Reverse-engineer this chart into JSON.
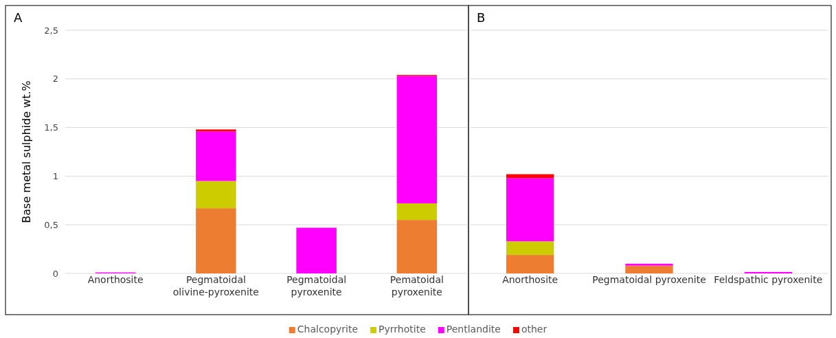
{
  "chart_data": [
    {
      "type": "bar",
      "stacked": true,
      "ylabel": "Base metal sulphide wt.%",
      "annotations": [
        "A"
      ],
      "categories": [
        "Anorthosite",
        "Pegmatoidal olivine-pyroxenite",
        "Pegmatoidal pyroxenite",
        "Pematoidal pyroxenite"
      ],
      "ylim": [
        0,
        2.5
      ],
      "yticks": [
        0,
        {
          "value": 0.5,
          "label": "0,5"
        },
        1,
        {
          "value": 1.5,
          "label": "1,5"
        },
        2,
        {
          "value": 2.5,
          "label": "2,5"
        }
      ],
      "grid": "y",
      "legend": "bottom",
      "series": [
        {
          "name": "Chalcopyrite",
          "color": "#ed7d31",
          "values": [
            0,
            0.67,
            0,
            0.55
          ]
        },
        {
          "name": "Pyrrhotite",
          "color": "#cccc00",
          "values": [
            0,
            0.28,
            0,
            0.17
          ]
        },
        {
          "name": "Pentlandite",
          "color": "#ff00ff",
          "values": [
            0.01,
            0.51,
            0.47,
            1.31
          ]
        },
        {
          "name": "other",
          "color": "#ff0000",
          "values": [
            0,
            0.02,
            0,
            0.01
          ]
        }
      ]
    },
    {
      "type": "bar",
      "stacked": true,
      "annotations": [
        "B"
      ],
      "categories": [
        "Anorthosite",
        "Pegmatoidal pyroxenite",
        "Feldspathic pyroxenite"
      ],
      "ylim": [
        0,
        2.5
      ],
      "yticks": [
        0,
        0.5,
        1,
        1.5,
        2,
        2.5
      ],
      "grid": "y",
      "tick_labels": "x",
      "series": [
        {
          "color": "#ed7d31",
          "values": [
            0.19,
            0.08,
            0
          ]
        },
        {
          "color": "#cccc00",
          "values": [
            0.14,
            0,
            0
          ]
        },
        {
          "color": "#ff00ff",
          "values": [
            0.65,
            0.02,
            0.015
          ]
        },
        {
          "color": "#ff0000",
          "values": [
            0.04,
            0,
            0
          ]
        }
      ]
    }
  ]
}
